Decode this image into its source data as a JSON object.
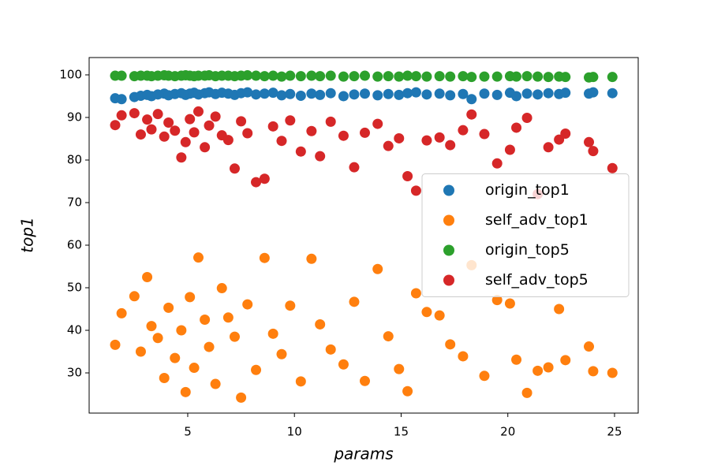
{
  "chart_data": {
    "type": "scatter",
    "x_label": "params",
    "y_label": "top1",
    "xlim": [
      0.38,
      26.11
    ],
    "ylim": [
      20.56,
      104.07
    ],
    "xticks": [
      5,
      10,
      15,
      20,
      25
    ],
    "yticks": [
      30,
      40,
      50,
      60,
      70,
      80,
      90,
      100
    ],
    "grid": false,
    "legend": "center right",
    "x": [
      1.6,
      1.9,
      2.5,
      2.8,
      3.1,
      3.3,
      3.6,
      3.9,
      4.1,
      4.4,
      4.7,
      4.9,
      5.1,
      5.3,
      5.5,
      5.8,
      6.0,
      6.3,
      6.6,
      6.9,
      7.2,
      7.5,
      7.8,
      8.2,
      8.6,
      9.0,
      9.4,
      9.8,
      10.3,
      10.8,
      11.2,
      11.7,
      12.3,
      12.8,
      13.3,
      13.9,
      14.4,
      14.9,
      15.3,
      15.7,
      16.2,
      16.8,
      17.3,
      17.9,
      18.3,
      18.9,
      19.5,
      20.1,
      20.4,
      20.9,
      21.4,
      21.9,
      22.4,
      22.7,
      23.8,
      24.0,
      24.9
    ],
    "series": [
      {
        "name": "origin_top1",
        "color": "#1f77b4",
        "values": [
          94.5,
          94.3,
          94.8,
          95.1,
          95.3,
          95.0,
          95.4,
          95.6,
          95.2,
          95.5,
          95.7,
          95.3,
          95.6,
          95.8,
          95.4,
          95.7,
          95.9,
          95.5,
          95.8,
          95.6,
          95.3,
          95.7,
          95.9,
          95.4,
          95.6,
          95.8,
          95.2,
          95.5,
          95.1,
          95.6,
          95.3,
          95.7,
          95.0,
          95.4,
          95.6,
          95.2,
          95.5,
          95.3,
          95.7,
          95.9,
          95.4,
          95.6,
          95.2,
          95.5,
          94.3,
          95.6,
          95.3,
          95.8,
          95.0,
          95.6,
          95.4,
          95.7,
          95.5,
          95.8,
          95.6,
          95.9,
          95.7
        ]
      },
      {
        "name": "self_adv_top1",
        "color": "#ff7f0e",
        "values": [
          36.6,
          44.0,
          48.0,
          35.0,
          52.5,
          41.0,
          38.2,
          28.8,
          45.3,
          33.5,
          40.0,
          25.5,
          47.8,
          31.2,
          57.1,
          42.5,
          36.1,
          27.4,
          49.9,
          43.0,
          38.5,
          24.2,
          46.1,
          30.7,
          57.0,
          39.2,
          34.4,
          45.8,
          28.0,
          56.8,
          41.4,
          35.5,
          32.0,
          46.7,
          28.1,
          54.4,
          38.6,
          30.9,
          25.7,
          48.7,
          44.3,
          43.5,
          36.7,
          33.9,
          55.3,
          29.3,
          47.1,
          46.3,
          33.1,
          25.3,
          30.5,
          31.3,
          45.0,
          33.0,
          36.2,
          30.4,
          30.0
        ]
      },
      {
        "name": "origin_top5",
        "color": "#2ca02c",
        "values": [
          99.8,
          99.8,
          99.7,
          99.8,
          99.8,
          99.7,
          99.8,
          99.9,
          99.8,
          99.7,
          99.8,
          99.9,
          99.8,
          99.7,
          99.8,
          99.8,
          99.9,
          99.7,
          99.8,
          99.8,
          99.7,
          99.8,
          99.9,
          99.8,
          99.7,
          99.8,
          99.6,
          99.8,
          99.7,
          99.8,
          99.7,
          99.8,
          99.6,
          99.7,
          99.8,
          99.6,
          99.7,
          99.6,
          99.8,
          99.7,
          99.6,
          99.7,
          99.6,
          99.7,
          99.5,
          99.6,
          99.6,
          99.7,
          99.6,
          99.7,
          99.6,
          99.5,
          99.6,
          99.5,
          99.4,
          99.5,
          99.5
        ]
      },
      {
        "name": "self_adv_top5",
        "color": "#d62728",
        "values": [
          88.2,
          90.5,
          91.0,
          86.0,
          89.5,
          87.2,
          90.8,
          85.5,
          88.8,
          86.9,
          80.6,
          84.2,
          89.6,
          86.5,
          91.4,
          83.0,
          88.1,
          90.2,
          85.8,
          84.7,
          78.0,
          89.1,
          86.3,
          74.8,
          75.6,
          87.9,
          84.5,
          89.3,
          82.0,
          86.8,
          80.9,
          89.0,
          85.7,
          78.3,
          86.4,
          88.5,
          83.3,
          85.1,
          76.2,
          72.8,
          84.6,
          85.3,
          83.5,
          87.0,
          90.7,
          86.1,
          79.2,
          82.4,
          87.6,
          89.9,
          72.0,
          83.0,
          84.8,
          86.2,
          84.2,
          82.1,
          78.1
        ]
      }
    ]
  }
}
